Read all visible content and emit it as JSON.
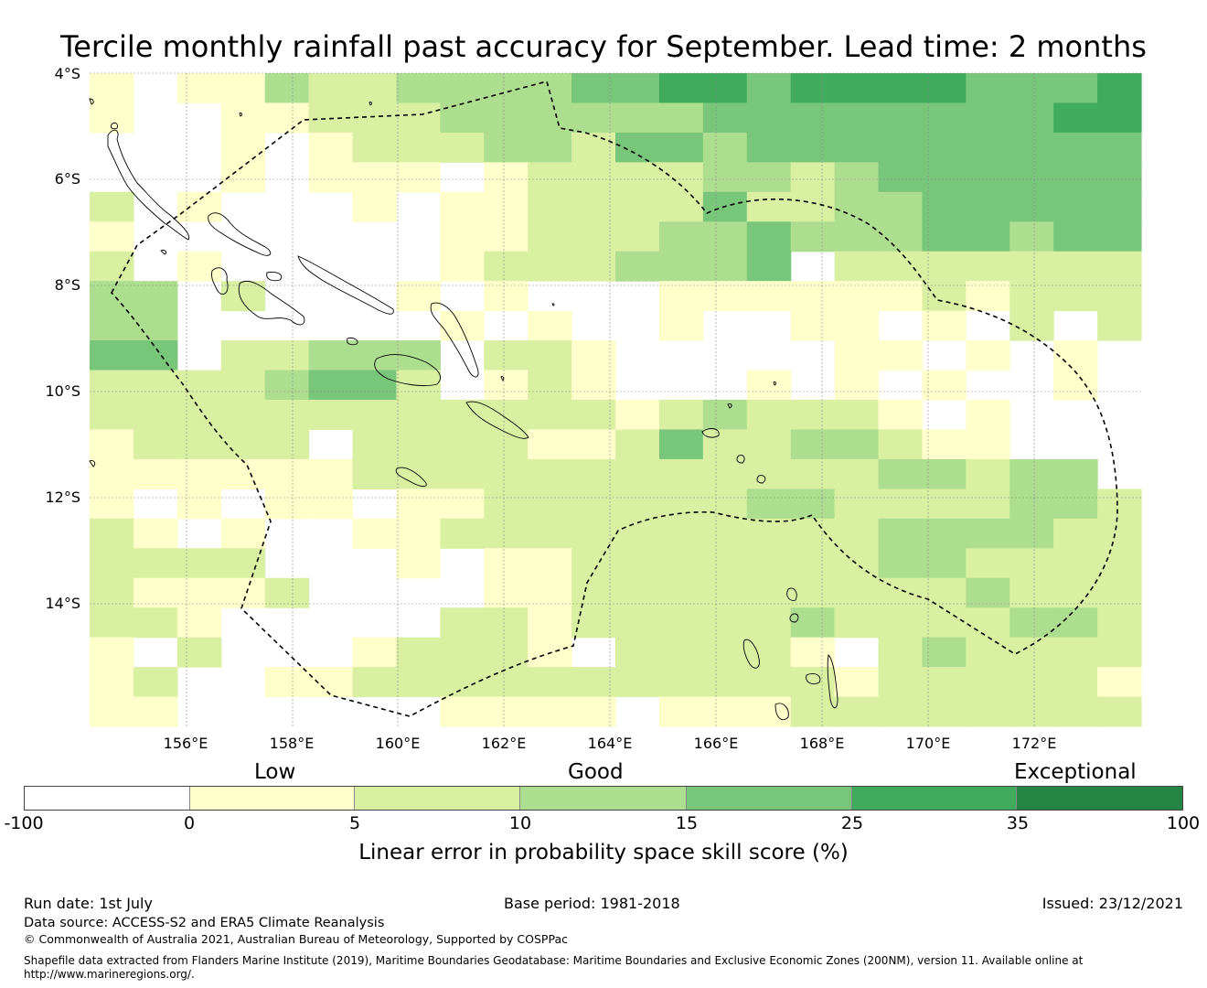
{
  "title": "Tercile monthly rainfall past accuracy for September. Lead time: 2 months",
  "map": {
    "lat_labels": [
      "4°S",
      "6°S",
      "8°S",
      "10°S",
      "12°S",
      "14°S"
    ],
    "lon_labels": [
      "156°E",
      "158°E",
      "160°E",
      "162°E",
      "164°E",
      "166°E",
      "168°E",
      "170°E",
      "172°E"
    ],
    "lat_range": [
      -16.3,
      -4.0
    ],
    "lon_range": [
      154.2,
      173.7
    ],
    "grid_resolution_deg": 0.833,
    "legend_colors": {
      "neg": "#ffffff",
      "c0_5": "#ffffcc",
      "c5_10": "#d9f0a3",
      "c10_15": "#addd8e",
      "c15_25": "#78c679",
      "c25_35": "#41ab5d",
      "c35_100": "#238443"
    }
  },
  "legend": {
    "category_labels": [
      "Low",
      "Good",
      "Exceptional"
    ],
    "tick_labels": [
      "-100",
      "0",
      "5",
      "10",
      "15",
      "25",
      "35",
      "100"
    ],
    "axis_label": "Linear error in probability space skill score (%)"
  },
  "footer": {
    "run_date": "Run date: 1st July",
    "base_period": "Base period: 1981-2018",
    "issued": "Issued: 23/12/2021",
    "data_source": "Data source: ACCESS-S2 and ERA5 Climate Reanalysis",
    "copyright": "© Commonwealth of Australia 2021, Australian Bureau of Meteorology, Supported by COSPPac",
    "shapefile_line1": "Shapefile data extracted from Flanders Marine Institute (2019), Maritime Boundaries Geodatabase: Maritime Boundaries and Exclusive Economic Zones (200NM), version 11. Available online at",
    "shapefile_line2": "http://www.marineregions.org/."
  }
}
